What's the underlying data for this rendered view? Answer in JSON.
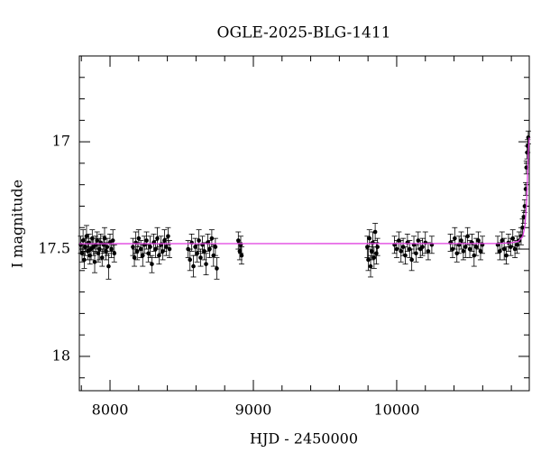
{
  "chart_data": {
    "type": "scatter",
    "title": "OGLE-2025-BLG-1411",
    "x_label": "HJD - 2450000",
    "y_label": "I magnitude",
    "xlim": [
      7786,
      10925
    ],
    "ylim": [
      16.6,
      18.16
    ],
    "y_inverted": true,
    "xticks": [
      8000,
      9000,
      10000
    ],
    "xminorticks": [
      7800,
      8200,
      8400,
      8600,
      8800,
      9200,
      9400,
      9600,
      9800,
      10200,
      10400,
      10600,
      10800
    ],
    "yticks": [
      17,
      17.5,
      18
    ],
    "yminorticks": [
      16.7,
      16.8,
      16.9,
      17.1,
      17.2,
      17.3,
      17.4,
      17.6,
      17.7,
      17.8,
      17.9,
      18.1
    ],
    "series": [
      {
        "color": "#000000",
        "x": [
          7795,
          7805,
          7812,
          7820,
          7828,
          7836,
          7845,
          7852,
          7860,
          7868,
          7876,
          7885,
          7893,
          7900,
          7910,
          7918,
          7926,
          7935,
          7945,
          7955,
          7962,
          7972,
          7980,
          7990,
          8000,
          8010,
          8020,
          8030,
          8160,
          8170,
          8180,
          8190,
          8200,
          8215,
          8228,
          8240,
          8255,
          8268,
          8280,
          8292,
          8305,
          8318,
          8330,
          8342,
          8355,
          8368,
          8380,
          8392,
          8405,
          8415,
          8545,
          8558,
          8570,
          8582,
          8595,
          8608,
          8620,
          8632,
          8645,
          8658,
          8670,
          8682,
          8695,
          8710,
          8722,
          8735,
          8745,
          8895,
          8905,
          8912,
          8918,
          9795,
          9802,
          9810,
          9818,
          9825,
          9833,
          9842,
          9850,
          9858,
          9866,
          9985,
          10000,
          10015,
          10030,
          10045,
          10060,
          10075,
          10090,
          10105,
          10120,
          10135,
          10150,
          10165,
          10180,
          10200,
          10220,
          10245,
          10375,
          10390,
          10405,
          10420,
          10435,
          10450,
          10465,
          10480,
          10495,
          10510,
          10525,
          10540,
          10555,
          10570,
          10585,
          10598,
          10705,
          10720,
          10735,
          10750,
          10765,
          10780,
          10795,
          10810,
          10825,
          10840,
          10855,
          10868,
          10878,
          10886,
          10893,
          10900,
          10905,
          10910,
          10914,
          10918
        ],
        "values": [
          17.48,
          17.52,
          17.46,
          17.55,
          17.49,
          17.44,
          17.51,
          17.47,
          17.53,
          17.5,
          17.45,
          17.49,
          17.56,
          17.48,
          17.46,
          17.52,
          17.5,
          17.47,
          17.54,
          17.48,
          17.45,
          17.51,
          17.49,
          17.58,
          17.47,
          17.5,
          17.46,
          17.52,
          17.49,
          17.54,
          17.47,
          17.51,
          17.45,
          17.5,
          17.53,
          17.48,
          17.46,
          17.52,
          17.49,
          17.57,
          17.47,
          17.5,
          17.45,
          17.53,
          17.48,
          17.51,
          17.46,
          17.49,
          17.44,
          17.5,
          17.5,
          17.55,
          17.47,
          17.58,
          17.49,
          17.52,
          17.46,
          17.54,
          17.48,
          17.51,
          17.57,
          17.47,
          17.5,
          17.45,
          17.53,
          17.49,
          17.59,
          17.46,
          17.51,
          17.48,
          17.53,
          17.49,
          17.55,
          17.45,
          17.58,
          17.51,
          17.47,
          17.54,
          17.42,
          17.52,
          17.49,
          17.48,
          17.5,
          17.46,
          17.51,
          17.49,
          17.53,
          17.47,
          17.5,
          17.55,
          17.48,
          17.52,
          17.46,
          17.5,
          17.49,
          17.47,
          17.51,
          17.48,
          17.47,
          17.5,
          17.45,
          17.52,
          17.48,
          17.46,
          17.51,
          17.49,
          17.44,
          17.5,
          17.47,
          17.53,
          17.49,
          17.46,
          17.51,
          17.48,
          17.48,
          17.51,
          17.46,
          17.5,
          17.53,
          17.47,
          17.49,
          17.45,
          17.5,
          17.48,
          17.46,
          17.44,
          17.4,
          17.35,
          17.3,
          17.22,
          17.12,
          17.05,
          17.02,
          16.98
        ],
        "errors": [
          0.04,
          0.04,
          0.05,
          0.04,
          0.04,
          0.05,
          0.04,
          0.04,
          0.04,
          0.05,
          0.04,
          0.04,
          0.05,
          0.04,
          0.04,
          0.04,
          0.05,
          0.04,
          0.04,
          0.04,
          0.05,
          0.04,
          0.04,
          0.06,
          0.04,
          0.04,
          0.05,
          0.04,
          0.04,
          0.04,
          0.05,
          0.04,
          0.04,
          0.04,
          0.05,
          0.04,
          0.04,
          0.04,
          0.05,
          0.04,
          0.04,
          0.04,
          0.05,
          0.04,
          0.04,
          0.04,
          0.05,
          0.04,
          0.04,
          0.04,
          0.04,
          0.05,
          0.04,
          0.05,
          0.04,
          0.04,
          0.05,
          0.04,
          0.04,
          0.04,
          0.05,
          0.04,
          0.04,
          0.04,
          0.05,
          0.04,
          0.05,
          0.04,
          0.04,
          0.04,
          0.04,
          0.05,
          0.05,
          0.04,
          0.05,
          0.04,
          0.05,
          0.05,
          0.04,
          0.05,
          0.04,
          0.04,
          0.04,
          0.04,
          0.05,
          0.04,
          0.04,
          0.04,
          0.04,
          0.05,
          0.04,
          0.04,
          0.04,
          0.04,
          0.04,
          0.05,
          0.04,
          0.04,
          0.04,
          0.04,
          0.05,
          0.04,
          0.04,
          0.04,
          0.04,
          0.05,
          0.04,
          0.04,
          0.04,
          0.05,
          0.04,
          0.04,
          0.04,
          0.04,
          0.04,
          0.04,
          0.04,
          0.05,
          0.04,
          0.04,
          0.04,
          0.04,
          0.04,
          0.04,
          0.04,
          0.04,
          0.04,
          0.03,
          0.03,
          0.03,
          0.03,
          0.03,
          0.03,
          0.03
        ]
      },
      {
        "color": "#e040e0",
        "x": [
          7786,
          10700,
          10800,
          10850,
          10880,
          10895,
          10905,
          10912,
          10918,
          10925
        ],
        "values": [
          17.475,
          17.474,
          17.471,
          17.463,
          17.44,
          17.39,
          17.3,
          17.18,
          17.05,
          16.98
        ]
      }
    ]
  }
}
